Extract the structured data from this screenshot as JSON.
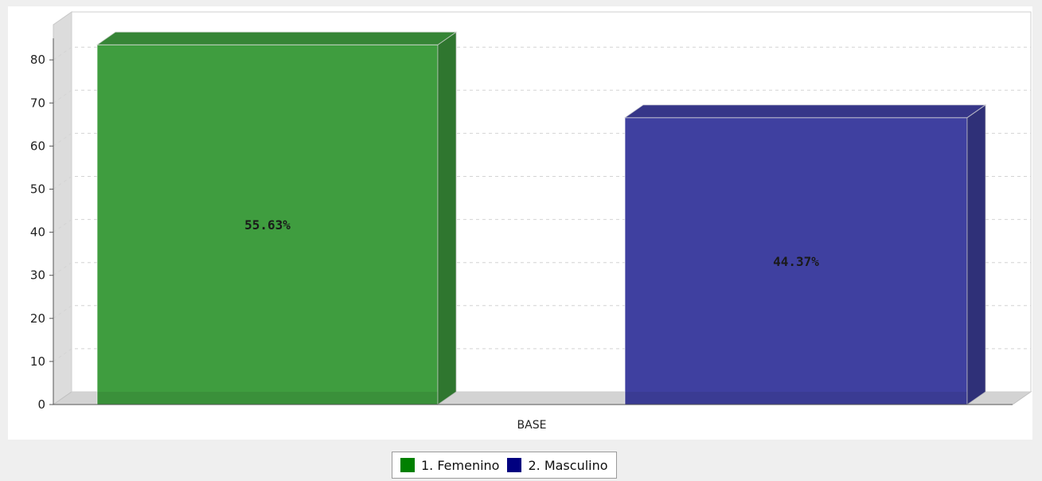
{
  "chart_data": {
    "type": "bar",
    "categories": [
      "BASE"
    ],
    "series": [
      {
        "name": "1. Femenino",
        "values": [
          83.5
        ],
        "label": "55.63%",
        "color": "#3f9d3f",
        "legend_color": "#008000"
      },
      {
        "name": "2. Masculino",
        "values": [
          66.6
        ],
        "label": "44.37%",
        "color": "#3f40a0",
        "legend_color": "#000080"
      }
    ],
    "title": "",
    "xlabel": "",
    "ylabel": "",
    "ylim": [
      0,
      85
    ],
    "yticks": [
      0,
      10,
      20,
      30,
      40,
      50,
      60,
      70,
      80
    ],
    "grid": true,
    "legend_position": "bottom-center",
    "style": "3d"
  }
}
